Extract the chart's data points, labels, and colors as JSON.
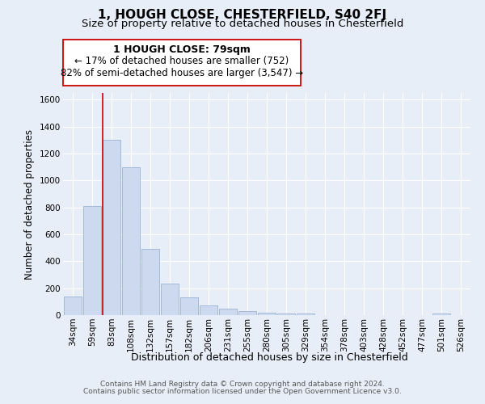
{
  "title": "1, HOUGH CLOSE, CHESTERFIELD, S40 2FJ",
  "subtitle": "Size of property relative to detached houses in Chesterfield",
  "xlabel": "Distribution of detached houses by size in Chesterfield",
  "ylabel": "Number of detached properties",
  "bar_labels": [
    "34sqm",
    "59sqm",
    "83sqm",
    "108sqm",
    "132sqm",
    "157sqm",
    "182sqm",
    "206sqm",
    "231sqm",
    "255sqm",
    "280sqm",
    "305sqm",
    "329sqm",
    "354sqm",
    "378sqm",
    "403sqm",
    "428sqm",
    "452sqm",
    "477sqm",
    "501sqm",
    "526sqm"
  ],
  "bar_values": [
    140,
    810,
    1300,
    1100,
    490,
    235,
    130,
    75,
    50,
    30,
    20,
    15,
    10,
    0,
    0,
    0,
    0,
    0,
    0,
    10,
    0
  ],
  "bar_color": "#ccd9ee",
  "bar_edgecolor": "#9ab2d4",
  "vline_color": "#cc0000",
  "ylim": [
    0,
    1650
  ],
  "yticks": [
    0,
    200,
    400,
    600,
    800,
    1000,
    1200,
    1400,
    1600
  ],
  "annotation_title": "1 HOUGH CLOSE: 79sqm",
  "annotation_line1": "← 17% of detached houses are smaller (752)",
  "annotation_line2": "82% of semi-detached houses are larger (3,547) →",
  "annotation_box_color": "#ffffff",
  "annotation_box_edgecolor": "#cc0000",
  "footer_line1": "Contains HM Land Registry data © Crown copyright and database right 2024.",
  "footer_line2": "Contains public sector information licensed under the Open Government Licence v3.0.",
  "background_color": "#e8eef8",
  "plot_bg_color": "#e8eef8",
  "grid_color": "#ffffff",
  "title_fontsize": 11,
  "subtitle_fontsize": 9.5,
  "xlabel_fontsize": 9,
  "ylabel_fontsize": 8.5,
  "tick_fontsize": 7.5,
  "footer_fontsize": 6.5,
  "ann_title_fontsize": 9,
  "ann_text_fontsize": 8.5
}
